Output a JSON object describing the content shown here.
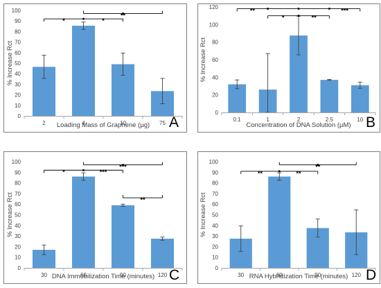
{
  "chart_data": [
    {
      "type": "bar",
      "panel": "A",
      "categories": [
        "2",
        "4",
        "10",
        "75"
      ],
      "values": [
        46.5,
        85.5,
        49,
        23.5
      ],
      "errors": [
        11,
        3.5,
        10.5,
        12
      ],
      "xlabel": "Loading Mass of Graphene (µg)",
      "ylabel": "% Increase Rct",
      "ylim": [
        0,
        100
      ],
      "yticks": [
        0,
        10,
        20,
        30,
        40,
        50,
        60,
        70,
        80,
        90,
        100
      ],
      "significance": [
        {
          "from": 0,
          "to": 2,
          "y": 92,
          "dir": "down",
          "labels": [
            {
              "between": [
                0,
                1
              ],
              "text": "*"
            },
            {
              "between": [
                1,
                2
              ],
              "text": "*"
            }
          ]
        },
        {
          "from": 1,
          "to": 3,
          "y": 97,
          "dir": "up",
          "labels": [
            {
              "between": [
                1,
                3
              ],
              "text": "**"
            }
          ]
        }
      ]
    },
    {
      "type": "bar",
      "panel": "B",
      "categories": [
        "0.1",
        "1",
        "2",
        "2.5",
        "10"
      ],
      "values": [
        32,
        26,
        87.5,
        37,
        31
      ],
      "errors": [
        5,
        41,
        22,
        0.5,
        3.5
      ],
      "xlabel": "Concentration of DNA Solution (µM)",
      "ylabel": "% Increase Rct",
      "ylim": [
        0,
        120
      ],
      "yticks": [
        0,
        20,
        40,
        60,
        80,
        100,
        120
      ],
      "significance": [
        {
          "from": 0,
          "to": 4,
          "y": 118,
          "dir": "down",
          "labels": [
            {
              "between": [
                0,
                1
              ],
              "text": "**"
            },
            {
              "between": [
                3,
                4
              ],
              "text": "***"
            }
          ]
        },
        {
          "from": 1,
          "to": 3,
          "y": 110,
          "dir": "down",
          "labels": [
            {
              "between": [
                1,
                2
              ],
              "text": "*"
            },
            {
              "between": [
                2,
                3
              ],
              "text": "**"
            }
          ]
        }
      ]
    },
    {
      "type": "bar",
      "panel": "C",
      "categories": [
        "30",
        "60",
        "90",
        "120"
      ],
      "values": [
        17,
        86,
        59,
        27.5
      ],
      "errors": [
        4.5,
        3.5,
        1,
        1.5
      ],
      "xlabel": "DNA Immobilization Time (minutes)",
      "ylabel": "% Increase Rct",
      "ylim": [
        0,
        100
      ],
      "yticks": [
        0,
        10,
        20,
        30,
        40,
        50,
        60,
        70,
        80,
        90,
        100
      ],
      "significance": [
        {
          "from": 0,
          "to": 2,
          "y": 92,
          "dir": "down",
          "labels": [
            {
              "between": [
                0,
                1
              ],
              "text": "*"
            },
            {
              "between": [
                1,
                2
              ],
              "text": "***"
            }
          ]
        },
        {
          "from": 1,
          "to": 3,
          "y": 97,
          "dir": "up",
          "labels": [
            {
              "between": [
                1,
                3
              ],
              "text": "***"
            }
          ]
        },
        {
          "from": 2,
          "to": 3,
          "y": 66,
          "dir": "up",
          "labels": [
            {
              "between": [
                2,
                3
              ],
              "text": "**"
            }
          ]
        }
      ]
    },
    {
      "type": "bar",
      "panel": "D",
      "categories": [
        "30",
        "60",
        "90",
        "120"
      ],
      "values": [
        27.5,
        86,
        37.5,
        33.5
      ],
      "errors": [
        12,
        3.5,
        8.5,
        21
      ],
      "xlabel": "RNA Hybridization Time (minutes)",
      "ylabel": "% Increase Rct",
      "ylim": [
        0,
        100
      ],
      "yticks": [
        0,
        10,
        20,
        30,
        40,
        50,
        60,
        70,
        80,
        90,
        100
      ],
      "significance": [
        {
          "from": 0,
          "to": 2,
          "y": 91,
          "dir": "down",
          "labels": [
            {
              "between": [
                0,
                1
              ],
              "text": "**"
            },
            {
              "between": [
                1,
                2
              ],
              "text": "**"
            }
          ]
        },
        {
          "from": 1,
          "to": 3,
          "y": 97,
          "dir": "up",
          "labels": [
            {
              "between": [
                1,
                3
              ],
              "text": "**"
            }
          ]
        }
      ]
    }
  ],
  "colors": {
    "bar": "#5b9bd5",
    "axis": "#a6a6a6",
    "text": "#404040",
    "frame": "#7f7f7f"
  }
}
